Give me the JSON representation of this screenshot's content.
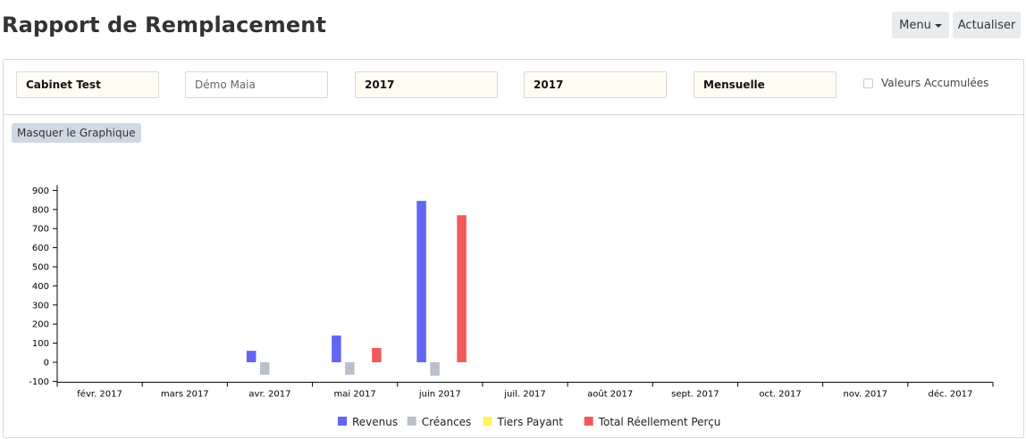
{
  "page": {
    "title": "Rapport de Remplacement",
    "menu_label": "Menu",
    "refresh_label": "Actualiser"
  },
  "filters": {
    "cabinet": "Cabinet Test",
    "practitioner_placeholder": "Démo Maia",
    "year_from": "2017",
    "year_to": "2017",
    "period": "Mensuelle",
    "cumulative_label": "Valeurs Accumulées",
    "cumulative_checked": false
  },
  "hide_chart_label": "Masquer le Graphique",
  "chart_data": {
    "type": "bar",
    "categories": [
      "févr. 2017",
      "mars 2017",
      "avr. 2017",
      "mai 2017",
      "juin 2017",
      "juil. 2017",
      "août 2017",
      "sept. 2017",
      "oct. 2017",
      "nov. 2017",
      "déc. 2017"
    ],
    "series": [
      {
        "name": "Revenus",
        "color": "#6266f2",
        "values": [
          0,
          0,
          60,
          140,
          845,
          0,
          0,
          0,
          0,
          0,
          0
        ]
      },
      {
        "name": "Créances",
        "color": "#b9c0c9",
        "values": [
          0,
          0,
          -65,
          -65,
          -70,
          0,
          0,
          0,
          0,
          0,
          0
        ]
      },
      {
        "name": "Tiers Payant",
        "color": "#fff35a",
        "values": [
          0,
          0,
          0,
          0,
          0,
          0,
          0,
          0,
          0,
          0,
          0
        ]
      },
      {
        "name": "Total Réellement Perçu",
        "color": "#f45a5a",
        "values": [
          0,
          0,
          0,
          75,
          770,
          0,
          0,
          0,
          0,
          0,
          0
        ]
      }
    ],
    "yticks": [
      -100,
      0,
      100,
      200,
      300,
      400,
      500,
      600,
      700,
      800,
      900
    ],
    "ylim": [
      -100,
      900
    ],
    "legend_position": "bottom"
  }
}
